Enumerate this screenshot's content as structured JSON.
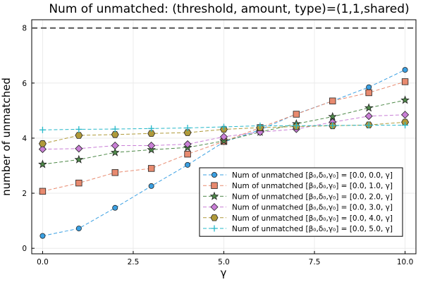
{
  "chart_data": {
    "type": "line",
    "title": "Num of unmatched: (threshold, amount, type)=(1,1,shared)",
    "xlabel": "γ",
    "ylabel": "number of unmatched",
    "xlim": [
      -0.3,
      10.3
    ],
    "ylim": [
      -0.2,
      8.3
    ],
    "xticks": [
      0,
      2.5,
      5,
      7.5,
      10
    ],
    "xtick_labels": [
      "0.0",
      "2.5",
      "5.0",
      "7.5",
      "10.0"
    ],
    "yticks": [
      0,
      2,
      4,
      6,
      8
    ],
    "ytick_labels": [
      "0",
      "2",
      "4",
      "6",
      "8"
    ],
    "grid": true,
    "legend_position": "bottom-right",
    "reference_line": {
      "y": 8,
      "style": "dashed",
      "color": "#555555"
    },
    "x": [
      0,
      1,
      2,
      3,
      4,
      5,
      6,
      7,
      8,
      9,
      10
    ],
    "series": [
      {
        "name": "Num of unmatched [β₀,δ₀,γ₀] = [0.0, 0.0, γ]",
        "marker": "circle",
        "color": "#3aa0e3",
        "values": [
          0.45,
          0.72,
          1.47,
          2.26,
          3.03,
          3.86,
          4.3,
          4.88,
          5.35,
          5.85,
          6.48
        ]
      },
      {
        "name": "Num of unmatched [β₀,δ₀,γ₀] = [0.0, 1.0, γ]",
        "marker": "square",
        "color": "#e88a6f",
        "values": [
          2.07,
          2.37,
          2.75,
          2.9,
          3.42,
          3.88,
          4.38,
          4.87,
          5.35,
          5.65,
          6.05
        ]
      },
      {
        "name": "Num of unmatched [β₀,δ₀,γ₀] = [0.0, 2.0, γ]",
        "marker": "star",
        "color": "#4f8a4a",
        "values": [
          3.05,
          3.22,
          3.48,
          3.58,
          3.66,
          3.9,
          4.22,
          4.52,
          4.78,
          5.1,
          5.38
        ]
      },
      {
        "name": "Num of unmatched [β₀,δ₀,γ₀] = [0.0, 3.0, γ]",
        "marker": "diamond",
        "color": "#c97fd6",
        "values": [
          3.6,
          3.62,
          3.73,
          3.73,
          3.78,
          4.05,
          4.22,
          4.33,
          4.58,
          4.8,
          4.85
        ]
      },
      {
        "name": "Num of unmatched [β₀,δ₀,γ₀] = [0.0, 4.0, γ]",
        "marker": "hexagon",
        "color": "#b09a3a",
        "values": [
          3.8,
          4.1,
          4.13,
          4.17,
          4.2,
          4.32,
          4.38,
          4.42,
          4.45,
          4.48,
          4.58
        ]
      },
      {
        "name": "Num of unmatched [β₀,δ₀,γ₀] = [0.0, 5.0, γ]",
        "marker": "plus",
        "color": "#26b8c9",
        "values": [
          4.3,
          4.32,
          4.33,
          4.35,
          4.37,
          4.41,
          4.45,
          4.45,
          4.46,
          4.47,
          4.47
        ]
      }
    ]
  }
}
